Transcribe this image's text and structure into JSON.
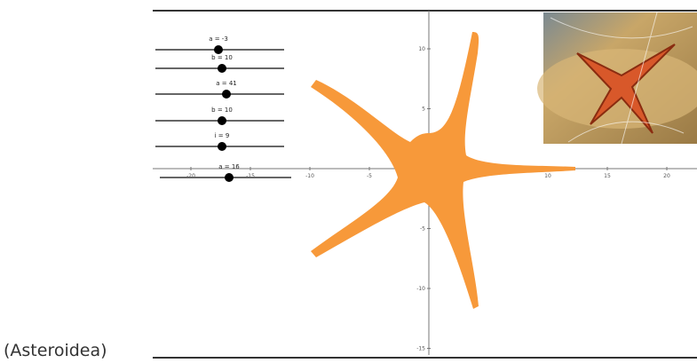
{
  "caption": "(Asteroidea)",
  "sliders": [
    {
      "label": "a = -3"
    },
    {
      "label": "b = 10"
    },
    {
      "label": "a = 41"
    },
    {
      "label": "b = 10"
    },
    {
      "label": "i = 9"
    },
    {
      "label": "a = 16"
    }
  ],
  "x_ticks": [
    -20,
    -15,
    -10,
    -5,
    10,
    15,
    20
  ],
  "y_ticks": [
    10,
    5,
    -5,
    -10,
    -15
  ]
}
